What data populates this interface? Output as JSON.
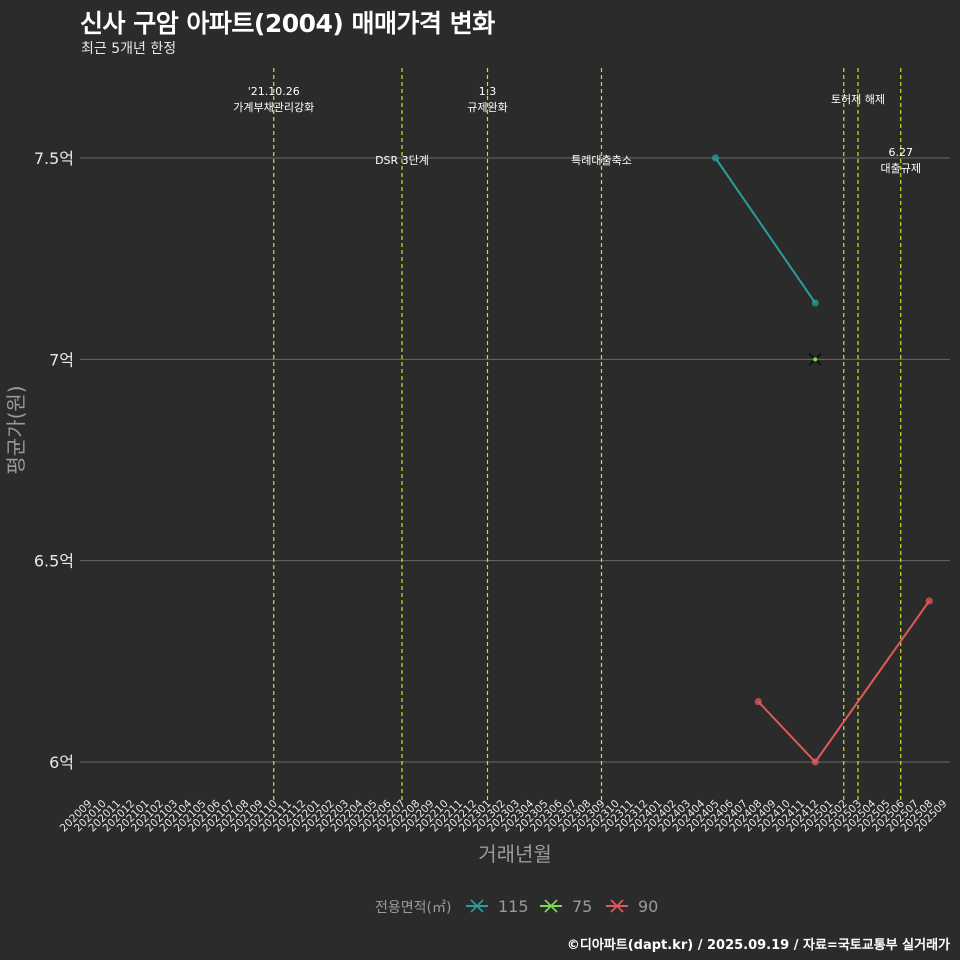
{
  "chart_data": {
    "type": "line",
    "title": "신사 구암 아파트(2004) 매매가격 변화",
    "subtitle": "최근 5개년 한정",
    "xlabel": "거래년월",
    "ylabel": "평균가(원)",
    "caption": "©디아파트(dapt.kr) / 2025.09.19 / 자료=국토교통부 실거래가",
    "categories": [
      "202009",
      "202010",
      "202011",
      "202012",
      "202101",
      "202102",
      "202103",
      "202104",
      "202105",
      "202106",
      "202107",
      "202108",
      "202109",
      "202110",
      "202111",
      "202112",
      "202201",
      "202202",
      "202203",
      "202204",
      "202205",
      "202206",
      "202207",
      "202208",
      "202209",
      "202210",
      "202211",
      "202212",
      "202301",
      "202302",
      "202303",
      "202304",
      "202305",
      "202306",
      "202307",
      "202308",
      "202309",
      "202310",
      "202311",
      "202312",
      "202401",
      "202402",
      "202403",
      "202404",
      "202405",
      "202406",
      "202407",
      "202408",
      "202409",
      "202410",
      "202411",
      "202412",
      "202501",
      "202502",
      "202503",
      "202504",
      "202505",
      "202506",
      "202507",
      "202508",
      "202509"
    ],
    "y_ticks": [
      {
        "value": 6.0,
        "label": "6억"
      },
      {
        "value": 6.5,
        "label": "6.5억"
      },
      {
        "value": 7.0,
        "label": "7억"
      },
      {
        "value": 7.5,
        "label": "7.5억"
      }
    ],
    "ylim": [
      5.92,
      7.72
    ],
    "grid": true,
    "legend": {
      "title": "전용면적(㎡)",
      "position": "bottom",
      "entries": [
        {
          "name": "115",
          "color": "#2a9d99"
        },
        {
          "name": "75",
          "color": "#7ed957"
        },
        {
          "name": "90",
          "color": "#e05a5a"
        }
      ]
    },
    "series": [
      {
        "name": "115",
        "color": "#2a9d99",
        "points": [
          {
            "x": "202405",
            "y": 7.5
          },
          {
            "x": "202412",
            "y": 7.14
          }
        ]
      },
      {
        "name": "75",
        "color": "#7ed957",
        "points": [
          {
            "x": "202412",
            "y": 7.0
          }
        ]
      },
      {
        "name": "90",
        "color": "#e05a5a",
        "points": [
          {
            "x": "202408",
            "y": 6.15
          },
          {
            "x": "202412",
            "y": 6.0
          },
          {
            "x": "202508",
            "y": 6.4
          }
        ]
      }
    ],
    "events": [
      {
        "x": "202110",
        "lines": [
          "'21.10.26",
          "가계부채관리강화"
        ],
        "row": "top"
      },
      {
        "x": "202207",
        "lines": [
          "DSR 3단계"
        ],
        "row": "mid"
      },
      {
        "x": "202301",
        "lines": [
          "1.3",
          "규제완화"
        ],
        "row": "top"
      },
      {
        "x": "202309",
        "lines": [
          "특례대출축소"
        ],
        "row": "mid"
      },
      {
        "x": "202502",
        "lines": [],
        "row": "top"
      },
      {
        "x": "202503",
        "lines": [
          "토허제 해제"
        ],
        "row": "top-single"
      },
      {
        "x": "202506",
        "lines": [
          "6.27",
          "대출규제"
        ],
        "row": "mid"
      }
    ]
  }
}
